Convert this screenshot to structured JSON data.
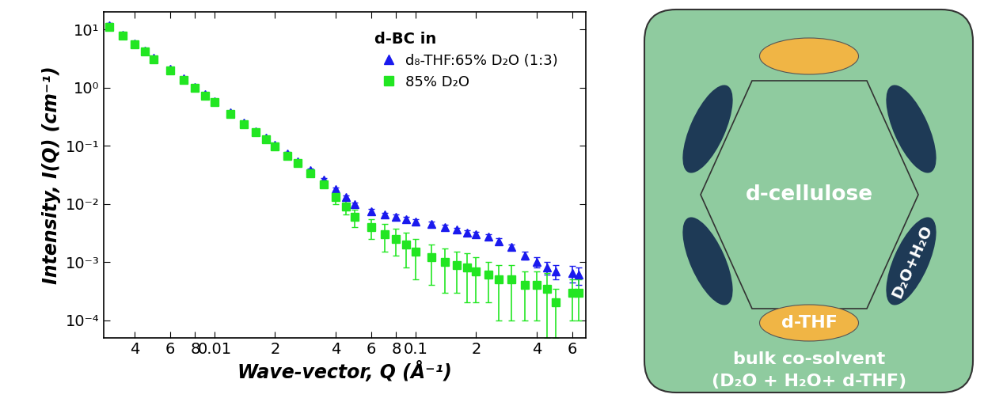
{
  "chart_data": {
    "type": "scatter",
    "log": true,
    "x_label": "Wave-vector, Q (Å⁻¹)",
    "y_label": "Intensity, I(Q) (cm⁻¹)",
    "legend": "upper right",
    "legend_title": "d-BC in",
    "xlim": [
      0.0028,
      0.7
    ],
    "ylim": [
      5e-05,
      20
    ],
    "xticks": [
      {
        "value": 0.004,
        "label": "4"
      },
      {
        "value": 0.006,
        "label": "6"
      },
      {
        "value": 0.008,
        "label": "8"
      },
      0.01,
      {
        "value": 0.02,
        "label": "2"
      },
      {
        "value": 0.04,
        "label": "4"
      },
      {
        "value": 0.06,
        "label": "6"
      },
      {
        "value": 0.08,
        "label": "8"
      },
      0.1,
      {
        "value": 0.2,
        "label": "2"
      },
      {
        "value": 0.4,
        "label": "4"
      },
      {
        "value": 0.6,
        "label": "6"
      }
    ],
    "yticks": [
      {
        "value": 0.0001,
        "label": "10⁻⁴"
      },
      {
        "value": 0.001,
        "label": "10⁻³"
      },
      {
        "value": 0.01,
        "label": "10⁻²"
      },
      {
        "value": 0.1,
        "label": "10⁻¹"
      },
      {
        "value": 1,
        "label": "10⁰"
      },
      {
        "value": 10,
        "label": "10¹"
      }
    ],
    "x": [
      0.003,
      0.0035,
      0.004,
      0.0045,
      0.005,
      0.006,
      0.007,
      0.008,
      0.009,
      0.01,
      0.012,
      0.014,
      0.016,
      0.018,
      0.02,
      0.023,
      0.026,
      0.03,
      0.035,
      0.04,
      0.045,
      0.05,
      0.06,
      0.07,
      0.08,
      0.09,
      0.1,
      0.12,
      0.14,
      0.16,
      0.18,
      0.2,
      0.23,
      0.26,
      0.3,
      0.35,
      0.4,
      0.45,
      0.5,
      0.6,
      0.65
    ],
    "series": [
      {
        "name": "d₈-THF:65% D₂O (1:3)",
        "color": "#1a1aee",
        "marker": "triangle",
        "values": [
          12,
          8.2,
          5.8,
          4.4,
          3.3,
          2.1,
          1.45,
          1.03,
          0.77,
          0.59,
          0.375,
          0.25,
          0.18,
          0.136,
          0.105,
          0.074,
          0.054,
          0.038,
          0.026,
          0.018,
          0.013,
          0.01,
          0.0075,
          0.0065,
          0.006,
          0.0055,
          0.005,
          0.0045,
          0.004,
          0.0036,
          0.0032,
          0.003,
          0.0027,
          0.0023,
          0.0018,
          0.0013,
          0.001,
          0.0008,
          0.0007,
          0.00065,
          0.0006
        ],
        "errors": [
          1.0,
          0.6,
          0.4,
          0.3,
          0.2,
          0.12,
          0.08,
          0.05,
          0.04,
          0.03,
          0.018,
          0.012,
          0.009,
          0.007,
          0.005,
          0.004,
          0.003,
          0.002,
          0.0015,
          0.001,
          0.0008,
          0.0007,
          0.0006,
          0.0006,
          0.0005,
          0.0005,
          0.0005,
          0.0004,
          0.0004,
          0.0003,
          0.0003,
          0.0003,
          0.0003,
          0.0003,
          0.0002,
          0.0002,
          0.0002,
          0.0002,
          0.0002,
          0.0002,
          0.0002
        ]
      },
      {
        "name": "85% D₂O",
        "color": "#22e622",
        "marker": "square",
        "values": [
          11,
          7.8,
          5.5,
          4.2,
          3.1,
          2.0,
          1.38,
          0.98,
          0.73,
          0.56,
          0.35,
          0.235,
          0.17,
          0.128,
          0.098,
          0.068,
          0.05,
          0.034,
          0.022,
          0.013,
          0.009,
          0.006,
          0.004,
          0.003,
          0.0025,
          0.002,
          0.0015,
          0.0012,
          0.001,
          0.0009,
          0.0008,
          0.0007,
          0.0006,
          0.0005,
          0.0005,
          0.0004,
          0.0004,
          0.00035,
          0.0002,
          0.0003,
          0.0003
        ],
        "errors": [
          1.0,
          0.6,
          0.4,
          0.3,
          0.2,
          0.12,
          0.08,
          0.05,
          0.04,
          0.03,
          0.02,
          0.015,
          0.01,
          0.008,
          0.006,
          0.005,
          0.004,
          0.004,
          0.003,
          0.003,
          0.0025,
          0.002,
          0.0015,
          0.0015,
          0.0012,
          0.0012,
          0.001,
          0.0008,
          0.0007,
          0.0006,
          0.0006,
          0.0005,
          0.0004,
          0.0004,
          0.0004,
          0.0003,
          0.0003,
          0.0003,
          0.00015,
          0.0002,
          0.0002
        ]
      }
    ]
  },
  "diagram": {
    "center": "d-cellulose",
    "water": "D₂O+H₂O",
    "thf": "d-THF",
    "bulk": [
      "bulk co-solvent",
      "(D₂O + H₂O+ d-THF)"
    ]
  }
}
